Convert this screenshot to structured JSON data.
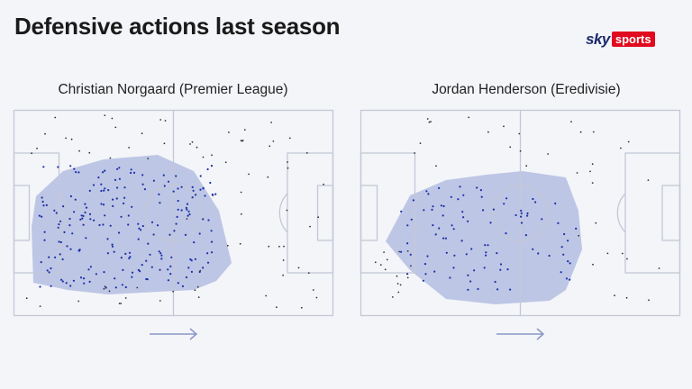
{
  "header": {
    "title": "Defensive actions last season",
    "brand": {
      "sky": "sky",
      "sports": "sports",
      "sky_color": "#1a2a6c",
      "sports_color": "#e10a1e"
    }
  },
  "colors": {
    "background": "#f4f5f9",
    "pitch_line": "#c4c8d6",
    "zone_fill": "#8f9fd6",
    "dot": "#1c2fa8",
    "arrow": "#8a97c4"
  },
  "panels": [
    {
      "title": "Christian Norgaard (Premier League)",
      "direction_icon": "arrow-right-icon"
    },
    {
      "title": "Jordan Henderson (Eredivisie)",
      "direction_icon": "arrow-right-icon"
    }
  ]
}
